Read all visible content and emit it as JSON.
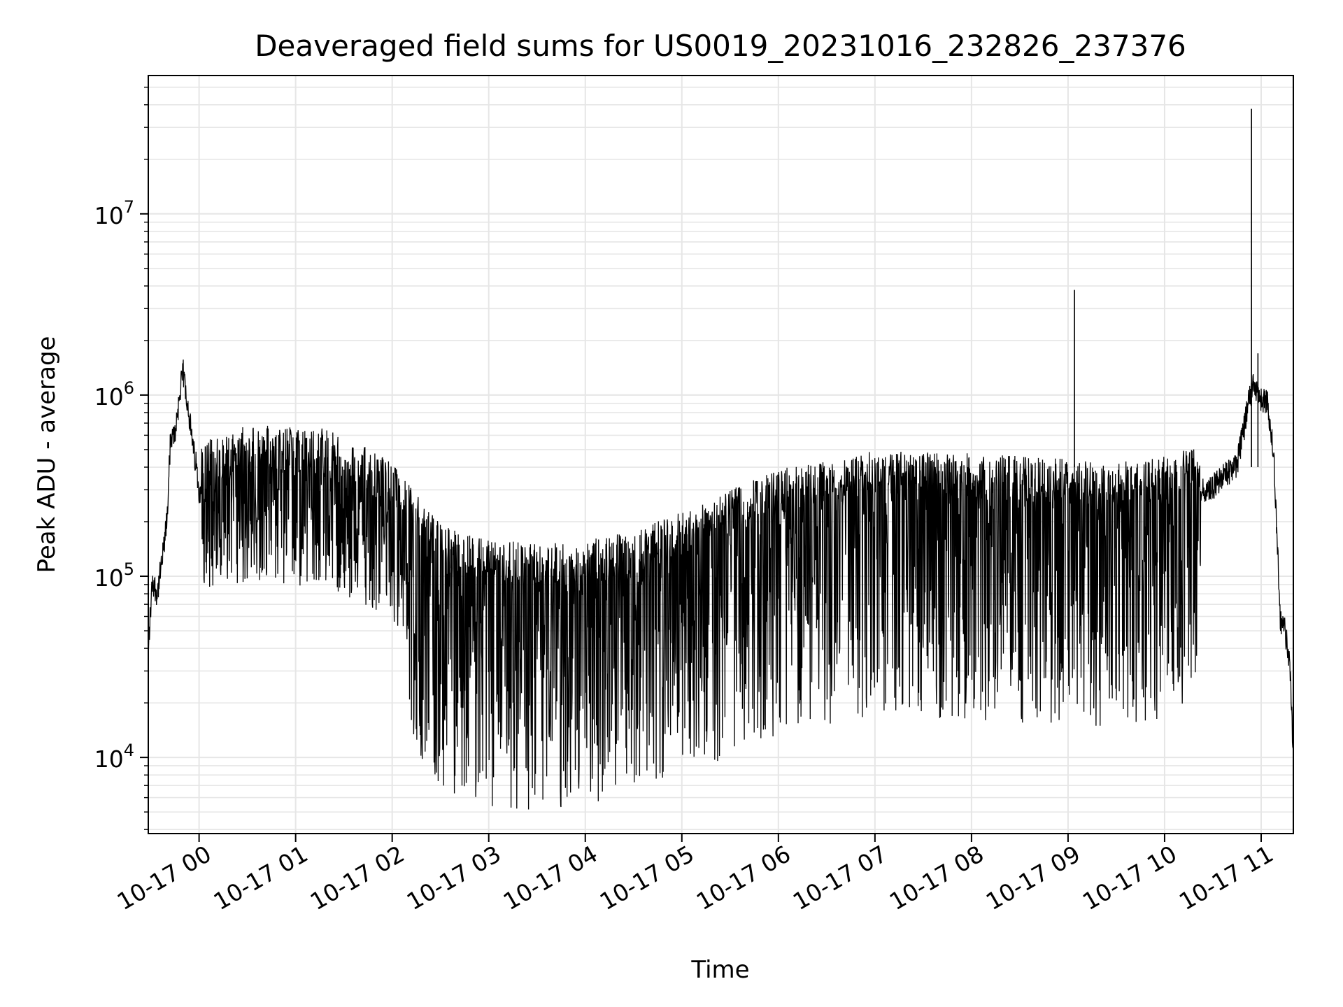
{
  "chart_data": {
    "type": "line",
    "title": "Deaveraged field sums for US0019_20231016_232826_237376",
    "xlabel": "Time",
    "ylabel": "Peak ADU - average",
    "yscale": "log",
    "ylim": [
      3800,
      58000000
    ],
    "xlim": [
      "2023-10-16 23:28:26",
      "2023-10-17 11:20:00"
    ],
    "grid": true,
    "line_color": "#000000",
    "grid_color": "#e6e6e6",
    "x_ticks": [
      {
        "x": "2023-10-17 00:00",
        "label": "10-17 00"
      },
      {
        "x": "2023-10-17 01:00",
        "label": "10-17 01"
      },
      {
        "x": "2023-10-17 02:00",
        "label": "10-17 02"
      },
      {
        "x": "2023-10-17 03:00",
        "label": "10-17 03"
      },
      {
        "x": "2023-10-17 04:00",
        "label": "10-17 04"
      },
      {
        "x": "2023-10-17 05:00",
        "label": "10-17 05"
      },
      {
        "x": "2023-10-17 06:00",
        "label": "10-17 06"
      },
      {
        "x": "2023-10-17 07:00",
        "label": "10-17 07"
      },
      {
        "x": "2023-10-17 08:00",
        "label": "10-17 08"
      },
      {
        "x": "2023-10-17 09:00",
        "label": "10-17 09"
      },
      {
        "x": "2023-10-17 10:00",
        "label": "10-17 10"
      },
      {
        "x": "2023-10-17 11:00",
        "label": "10-17 11"
      }
    ],
    "y_ticks": [
      {
        "value": 10000,
        "base": "10",
        "exp": "4"
      },
      {
        "value": 100000,
        "base": "10",
        "exp": "5"
      },
      {
        "value": 1000000,
        "base": "10",
        "exp": "6"
      },
      {
        "value": 10000000,
        "base": "10",
        "exp": "7"
      }
    ],
    "series": [
      {
        "points": [
          [
            "2023-10-16 23:28",
            34000
          ],
          [
            "2023-10-16 23:31",
            95000
          ],
          [
            "2023-10-16 23:34",
            80000
          ],
          [
            "2023-10-16 23:37",
            120000
          ],
          [
            "2023-10-16 23:40",
            200000
          ],
          [
            "2023-10-16 23:42",
            520000
          ],
          [
            "2023-10-16 23:45",
            620000
          ],
          [
            "2023-10-16 23:48",
            1000000
          ],
          [
            "2023-10-16 23:50",
            1350000
          ],
          [
            "2023-10-16 23:53",
            900000
          ],
          [
            "2023-10-16 23:56",
            520000
          ],
          [
            "2023-10-16 23:58",
            420000
          ],
          [
            "2023-10-17 00:00",
            300000
          ],
          [
            "2023-10-17 00:15",
            350000
          ],
          [
            "2023-10-17 00:30",
            380000
          ],
          [
            "2023-10-17 00:45",
            390000
          ],
          [
            "2023-10-17 01:00",
            370000
          ],
          [
            "2023-10-17 01:15",
            380000
          ],
          [
            "2023-10-17 01:30",
            330000
          ],
          [
            "2023-10-17 01:45",
            290000
          ],
          [
            "2023-10-17 02:00",
            240000
          ],
          [
            "2023-10-17 02:15",
            160000
          ],
          [
            "2023-10-17 02:30",
            110000
          ],
          [
            "2023-10-17 03:00",
            90000
          ],
          [
            "2023-10-17 03:30",
            85000
          ],
          [
            "2023-10-17 04:00",
            90000
          ],
          [
            "2023-10-17 04:30",
            100000
          ],
          [
            "2023-10-17 05:00",
            130000
          ],
          [
            "2023-10-17 05:30",
            170000
          ],
          [
            "2023-10-17 06:00",
            220000
          ],
          [
            "2023-10-17 07:00",
            280000
          ],
          [
            "2023-10-17 08:00",
            270000
          ],
          [
            "2023-10-17 09:00",
            250000
          ],
          [
            "2023-10-17 09:30",
            240000
          ],
          [
            "2023-10-17 10:00",
            260000
          ],
          [
            "2023-10-17 10:30",
            310000
          ],
          [
            "2023-10-17 10:45",
            420000
          ],
          [
            "2023-10-17 10:50",
            700000
          ],
          [
            "2023-10-17 10:53",
            1000000
          ],
          [
            "2023-10-17 10:55",
            1100000
          ],
          [
            "2023-10-17 11:00",
            950000
          ],
          [
            "2023-10-17 11:04",
            900000
          ],
          [
            "2023-10-17 11:08",
            450000
          ],
          [
            "2023-10-17 11:10",
            150000
          ],
          [
            "2023-10-17 11:12",
            58000
          ],
          [
            "2023-10-17 11:15",
            50000
          ],
          [
            "2023-10-17 11:18",
            30000
          ],
          [
            "2023-10-17 11:20",
            10000
          ]
        ],
        "spikes": [
          [
            "2023-10-17 09:04",
            3800000
          ],
          [
            "2023-10-17 10:54",
            38000000
          ],
          [
            "2023-10-17 10:58",
            1700000
          ]
        ]
      }
    ]
  }
}
